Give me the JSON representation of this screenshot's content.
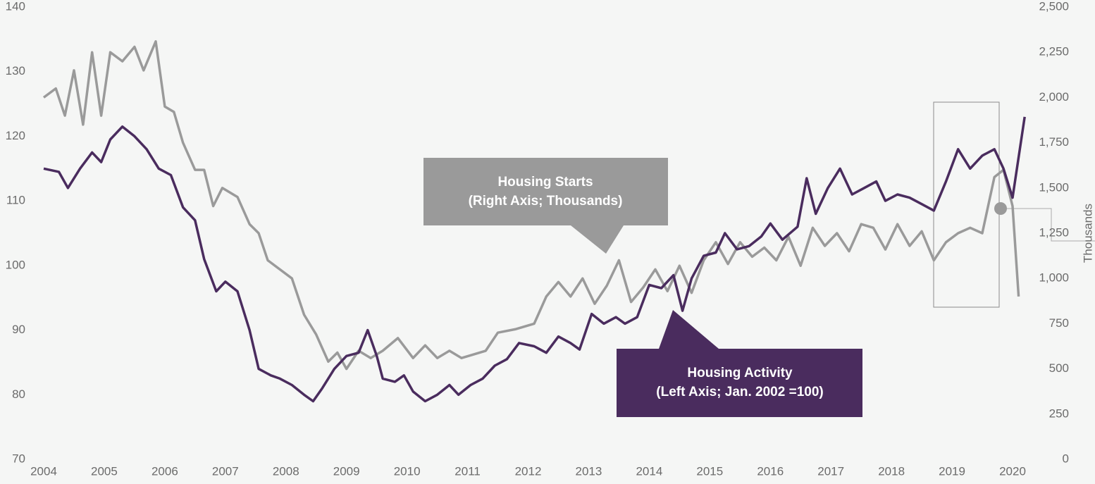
{
  "chart_data": {
    "type": "line",
    "y2label": "Thousands",
    "annotations": [
      {
        "lines": [
          "Housing Starts",
          "(Right Axis; Thousands)"
        ]
      },
      {
        "lines": [
          "Housing Activity",
          "(Left Axis; Jan. 2002 =100)"
        ]
      }
    ],
    "xlim": [
      2004,
      2020
    ],
    "xticks": [
      2004,
      2005,
      2006,
      2007,
      2008,
      2009,
      2010,
      2011,
      2012,
      2013,
      2014,
      2015,
      2016,
      2017,
      2018,
      2019,
      2020
    ],
    "ylim": [
      70,
      140
    ],
    "yticks": [
      70,
      80,
      90,
      100,
      110,
      120,
      130,
      140
    ],
    "y2lim": [
      0,
      2500
    ],
    "y2ticks": [
      0,
      250,
      500,
      750,
      {
        "value": 1000,
        "label": "1,000"
      },
      {
        "value": 1250,
        "label": "1,250"
      },
      {
        "value": 1500,
        "label": "1,500"
      },
      {
        "value": 1750,
        "label": "1,750"
      },
      {
        "value": 2000,
        "label": "2,000"
      },
      {
        "value": 2250,
        "label": "2,250"
      },
      {
        "value": 2500,
        "label": "2,500"
      }
    ],
    "series": [
      {
        "name": "Housing Activity",
        "color": "#4a2c5e",
        "x": [
          2004.0,
          2004.25,
          2004.4,
          2004.6,
          2004.8,
          2004.95,
          2005.1,
          2005.3,
          2005.5,
          2005.7,
          2005.9,
          2006.1,
          2006.3,
          2006.5,
          2006.65,
          2006.85,
          2007.0,
          2007.2,
          2007.4,
          2007.55,
          2007.75,
          2007.9,
          2008.1,
          2008.3,
          2008.45,
          2008.6,
          2008.8,
          2009.0,
          2009.2,
          2009.35,
          2009.5,
          2009.6,
          2009.8,
          2009.95,
          2010.1,
          2010.3,
          2010.5,
          2010.7,
          2010.85,
          2011.05,
          2011.25,
          2011.45,
          2011.65,
          2011.85,
          2012.1,
          2012.3,
          2012.5,
          2012.7,
          2012.85,
          2013.05,
          2013.25,
          2013.45,
          2013.6,
          2013.8,
          2014.0,
          2014.2,
          2014.4,
          2014.55,
          2014.7,
          2014.9,
          2015.1,
          2015.25,
          2015.45,
          2015.65,
          2015.85,
          2016.0,
          2016.2,
          2016.45,
          2016.6,
          2016.75,
          2016.95,
          2017.15,
          2017.35,
          2017.55,
          2017.75,
          2017.9,
          2018.1,
          2018.3,
          2018.5,
          2018.7,
          2018.9,
          2019.1,
          2019.3,
          2019.5,
          2019.7,
          2019.85,
          2020.0,
          2020.2
        ],
        "values": [
          115,
          114.5,
          112,
          115,
          117.5,
          116,
          119.5,
          121.5,
          120,
          118,
          115,
          114,
          109,
          107,
          101,
          96,
          97.5,
          96,
          90,
          84,
          83,
          82.5,
          81.5,
          80,
          79,
          81,
          84,
          86,
          86.5,
          90,
          86,
          82.5,
          82,
          83,
          80.5,
          79,
          80,
          81.5,
          80,
          81.5,
          82.5,
          84.5,
          85.5,
          88,
          87.5,
          86.5,
          89,
          88,
          87,
          92.5,
          91,
          92,
          91,
          92,
          97,
          96.5,
          98.5,
          93,
          98,
          101.5,
          102,
          105,
          102.5,
          103,
          104.5,
          106.5,
          104,
          106,
          113.5,
          108,
          112,
          115,
          111,
          112,
          113,
          110,
          111,
          110.5,
          109.5,
          108.5,
          113,
          118,
          115,
          117,
          118,
          115,
          110.5,
          123
        ]
      },
      {
        "name": "Housing Starts",
        "color": "#9a9a9a",
        "axis": "y2",
        "x": [
          2004.0,
          2004.2,
          2004.35,
          2004.5,
          2004.65,
          2004.8,
          2004.95,
          2005.1,
          2005.3,
          2005.5,
          2005.65,
          2005.85,
          2006.0,
          2006.15,
          2006.3,
          2006.5,
          2006.65,
          2006.8,
          2006.95,
          2007.2,
          2007.4,
          2007.55,
          2007.7,
          2007.9,
          2008.1,
          2008.3,
          2008.5,
          2008.7,
          2008.85,
          2009.0,
          2009.2,
          2009.4,
          2009.6,
          2009.85,
          2010.1,
          2010.3,
          2010.5,
          2010.7,
          2010.9,
          2011.1,
          2011.3,
          2011.5,
          2011.8,
          2012.1,
          2012.3,
          2012.5,
          2012.7,
          2012.9,
          2013.1,
          2013.3,
          2013.5,
          2013.7,
          2013.9,
          2014.1,
          2014.3,
          2014.5,
          2014.7,
          2014.9,
          2015.1,
          2015.3,
          2015.5,
          2015.7,
          2015.9,
          2016.1,
          2016.3,
          2016.5,
          2016.7,
          2016.9,
          2017.1,
          2017.3,
          2017.5,
          2017.7,
          2017.9,
          2018.1,
          2018.3,
          2018.5,
          2018.7,
          2018.9,
          2019.1,
          2019.3,
          2019.5,
          2019.7,
          2019.85,
          2020.0,
          2020.1
        ],
        "values": [
          2000,
          2050,
          1900,
          2150,
          1850,
          2250,
          1900,
          2250,
          2200,
          2280,
          2150,
          2310,
          1950,
          1920,
          1750,
          1600,
          1600,
          1400,
          1500,
          1450,
          1300,
          1250,
          1100,
          1050,
          1000,
          800,
          690,
          540,
          590,
          500,
          600,
          560,
          600,
          670,
          560,
          630,
          560,
          600,
          560,
          580,
          600,
          700,
          720,
          750,
          900,
          980,
          900,
          1000,
          860,
          960,
          1100,
          870,
          950,
          1050,
          930,
          1070,
          920,
          1100,
          1200,
          1080,
          1200,
          1120,
          1170,
          1100,
          1230,
          1070,
          1280,
          1180,
          1250,
          1150,
          1300,
          1280,
          1160,
          1300,
          1180,
          1260,
          1100,
          1200,
          1250,
          1280,
          1250,
          1560,
          1600,
          1400,
          900
        ]
      }
    ]
  }
}
